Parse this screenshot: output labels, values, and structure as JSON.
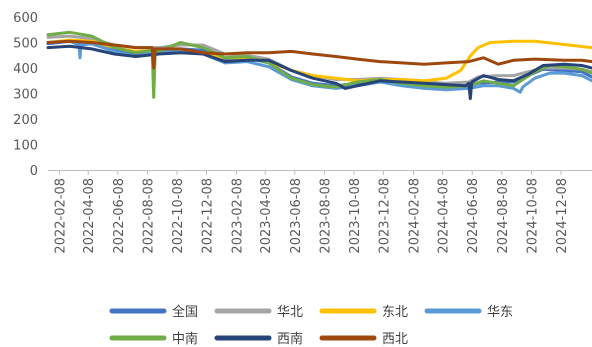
{
  "chart_data": {
    "type": "line",
    "title": "",
    "xlabel": "",
    "ylabel": "",
    "ylim": [
      0,
      600
    ],
    "y_ticks": [
      "0",
      "100",
      "200",
      "300",
      "400",
      "500",
      "600"
    ],
    "x_range": [
      "2022-01-15",
      "2025-02-10"
    ],
    "x_ticks": [
      "2022-02-08",
      "2022-04-08",
      "2022-06-08",
      "2022-08-08",
      "2022-10-08",
      "2022-12-08",
      "2023-02-08",
      "2023-04-08",
      "2023-06-08",
      "2023-08-08",
      "2023-10-08",
      "2023-12-08",
      "2024-02-08",
      "2024-04-08",
      "2024-06-08",
      "2024-08-08",
      "2024-10-08",
      "2024-12-08"
    ],
    "grid": false,
    "legend_position": "bottom",
    "series": [
      {
        "name": "全国",
        "color": "#4472C4",
        "width": 3,
        "points": [
          [
            "2022-01-15",
            495
          ],
          [
            "2022-03-01",
            505
          ],
          [
            "2022-04-15",
            495
          ],
          [
            "2022-06-01",
            470
          ],
          [
            "2022-07-15",
            455
          ],
          [
            "2022-09-01",
            465
          ],
          [
            "2022-10-15",
            475
          ],
          [
            "2022-12-01",
            470
          ],
          [
            "2023-01-15",
            435
          ],
          [
            "2023-03-01",
            440
          ],
          [
            "2023-04-15",
            420
          ],
          [
            "2023-06-01",
            365
          ],
          [
            "2023-07-15",
            340
          ],
          [
            "2023-09-01",
            330
          ],
          [
            "2023-10-15",
            340
          ],
          [
            "2023-12-01",
            350
          ],
          [
            "2024-01-15",
            340
          ],
          [
            "2024-03-01",
            335
          ],
          [
            "2024-04-15",
            330
          ],
          [
            "2024-06-01",
            330
          ],
          [
            "2024-06-20",
            340
          ],
          [
            "2024-08-01",
            345
          ],
          [
            "2024-09-01",
            345
          ],
          [
            "2024-10-01",
            370
          ],
          [
            "2024-11-01",
            395
          ],
          [
            "2024-12-15",
            390
          ],
          [
            "2025-01-20",
            385
          ],
          [
            "2025-02-10",
            365
          ]
        ]
      },
      {
        "name": "华北",
        "color": "#A5A5A5",
        "width": 3,
        "points": [
          [
            "2022-01-15",
            520
          ],
          [
            "2022-03-01",
            525
          ],
          [
            "2022-04-15",
            515
          ],
          [
            "2022-06-01",
            490
          ],
          [
            "2022-07-15",
            480
          ],
          [
            "2022-09-01",
            480
          ],
          [
            "2022-10-15",
            490
          ],
          [
            "2022-12-01",
            490
          ],
          [
            "2023-01-15",
            455
          ],
          [
            "2023-03-01",
            450
          ],
          [
            "2023-04-15",
            435
          ],
          [
            "2023-06-01",
            390
          ],
          [
            "2023-07-15",
            370
          ],
          [
            "2023-09-01",
            355
          ],
          [
            "2023-10-15",
            355
          ],
          [
            "2023-12-01",
            360
          ],
          [
            "2024-01-15",
            355
          ],
          [
            "2024-03-01",
            345
          ],
          [
            "2024-04-15",
            340
          ],
          [
            "2024-06-01",
            345
          ],
          [
            "2024-06-20",
            365
          ],
          [
            "2024-08-01",
            370
          ],
          [
            "2024-09-01",
            370
          ],
          [
            "2024-10-01",
            385
          ],
          [
            "2024-11-01",
            400
          ],
          [
            "2024-12-15",
            400
          ],
          [
            "2025-01-20",
            395
          ],
          [
            "2025-02-10",
            385
          ]
        ]
      },
      {
        "name": "东北",
        "color": "#FFC000",
        "width": 3,
        "points": [
          [
            "2022-01-15",
            500
          ],
          [
            "2022-03-01",
            510
          ],
          [
            "2022-04-15",
            505
          ],
          [
            "2022-06-01",
            480
          ],
          [
            "2022-07-15",
            465
          ],
          [
            "2022-09-01",
            470
          ],
          [
            "2022-10-15",
            470
          ],
          [
            "2022-12-01",
            455
          ],
          [
            "2023-01-15",
            440
          ],
          [
            "2023-03-01",
            440
          ],
          [
            "2023-04-15",
            425
          ],
          [
            "2023-06-01",
            390
          ],
          [
            "2023-07-15",
            370
          ],
          [
            "2023-09-01",
            360
          ],
          [
            "2023-10-15",
            350
          ],
          [
            "2023-12-01",
            355
          ],
          [
            "2024-01-15",
            355
          ],
          [
            "2024-03-01",
            350
          ],
          [
            "2024-04-15",
            360
          ],
          [
            "2024-05-15",
            390
          ],
          [
            "2024-06-05",
            450
          ],
          [
            "2024-06-20",
            480
          ],
          [
            "2024-07-15",
            500
          ],
          [
            "2024-09-01",
            505
          ],
          [
            "2024-10-15",
            505
          ],
          [
            "2024-12-01",
            495
          ],
          [
            "2025-01-15",
            485
          ],
          [
            "2025-02-10",
            480
          ]
        ]
      },
      {
        "name": "华东",
        "color": "#5B9BD5",
        "width": 3,
        "points": [
          [
            "2022-01-15",
            500
          ],
          [
            "2022-03-01",
            505
          ],
          [
            "2022-03-20",
            490
          ],
          [
            "2022-03-22",
            440
          ],
          [
            "2022-03-24",
            490
          ],
          [
            "2022-04-15",
            495
          ],
          [
            "2022-06-01",
            465
          ],
          [
            "2022-07-15",
            445
          ],
          [
            "2022-09-01",
            465
          ],
          [
            "2022-10-15",
            470
          ],
          [
            "2022-12-01",
            455
          ],
          [
            "2023-01-15",
            420
          ],
          [
            "2023-03-01",
            425
          ],
          [
            "2023-04-15",
            405
          ],
          [
            "2023-06-01",
            355
          ],
          [
            "2023-07-15",
            330
          ],
          [
            "2023-09-01",
            320
          ],
          [
            "2023-10-15",
            330
          ],
          [
            "2023-12-01",
            345
          ],
          [
            "2024-01-15",
            330
          ],
          [
            "2024-03-01",
            320
          ],
          [
            "2024-04-15",
            315
          ],
          [
            "2024-06-01",
            320
          ],
          [
            "2024-07-01",
            330
          ],
          [
            "2024-08-01",
            330
          ],
          [
            "2024-09-01",
            320
          ],
          [
            "2024-09-15",
            305
          ],
          [
            "2024-09-20",
            325
          ],
          [
            "2024-10-15",
            360
          ],
          [
            "2024-11-15",
            380
          ],
          [
            "2024-12-15",
            380
          ],
          [
            "2025-01-20",
            370
          ],
          [
            "2025-02-10",
            350
          ]
        ]
      },
      {
        "name": "中南",
        "color": "#70AD47",
        "width": 3,
        "points": [
          [
            "2022-01-15",
            530
          ],
          [
            "2022-03-01",
            540
          ],
          [
            "2022-04-15",
            525
          ],
          [
            "2022-06-01",
            480
          ],
          [
            "2022-07-15",
            460
          ],
          [
            "2022-08-18",
            470
          ],
          [
            "2022-08-21",
            285
          ],
          [
            "2022-08-24",
            460
          ],
          [
            "2022-10-15",
            500
          ],
          [
            "2022-12-01",
            480
          ],
          [
            "2023-01-15",
            440
          ],
          [
            "2023-03-01",
            445
          ],
          [
            "2023-04-15",
            420
          ],
          [
            "2023-06-01",
            360
          ],
          [
            "2023-07-15",
            335
          ],
          [
            "2023-09-01",
            325
          ],
          [
            "2023-10-15",
            345
          ],
          [
            "2023-12-01",
            355
          ],
          [
            "2024-01-15",
            340
          ],
          [
            "2024-03-01",
            330
          ],
          [
            "2024-04-15",
            325
          ],
          [
            "2024-06-01",
            330
          ],
          [
            "2024-07-01",
            350
          ],
          [
            "2024-08-01",
            340
          ],
          [
            "2024-09-01",
            330
          ],
          [
            "2024-10-15",
            385
          ],
          [
            "2024-11-15",
            410
          ],
          [
            "2024-12-15",
            405
          ],
          [
            "2025-01-20",
            395
          ],
          [
            "2025-02-10",
            380
          ]
        ]
      },
      {
        "name": "西南",
        "color": "#264478",
        "width": 3,
        "points": [
          [
            "2022-01-15",
            480
          ],
          [
            "2022-03-01",
            485
          ],
          [
            "2022-04-15",
            475
          ],
          [
            "2022-06-01",
            455
          ],
          [
            "2022-07-15",
            445
          ],
          [
            "2022-09-01",
            455
          ],
          [
            "2022-10-15",
            460
          ],
          [
            "2022-12-01",
            455
          ],
          [
            "2023-01-15",
            425
          ],
          [
            "2023-03-01",
            430
          ],
          [
            "2023-04-15",
            430
          ],
          [
            "2023-06-01",
            390
          ],
          [
            "2023-07-15",
            360
          ],
          [
            "2023-09-01",
            340
          ],
          [
            "2023-09-20",
            320
          ],
          [
            "2023-10-15",
            330
          ],
          [
            "2023-12-01",
            350
          ],
          [
            "2024-01-15",
            345
          ],
          [
            "2024-03-01",
            340
          ],
          [
            "2024-04-15",
            335
          ],
          [
            "2024-05-25",
            330
          ],
          [
            "2024-06-01",
            340
          ],
          [
            "2024-06-04",
            280
          ],
          [
            "2024-06-07",
            345
          ],
          [
            "2024-07-01",
            370
          ],
          [
            "2024-08-01",
            355
          ],
          [
            "2024-09-01",
            350
          ],
          [
            "2024-10-01",
            375
          ],
          [
            "2024-11-01",
            410
          ],
          [
            "2024-12-15",
            415
          ],
          [
            "2025-01-20",
            410
          ],
          [
            "2025-02-10",
            400
          ]
        ]
      },
      {
        "name": "西北",
        "color": "#9E480E",
        "width": 3,
        "points": [
          [
            "2022-01-15",
            500
          ],
          [
            "2022-03-01",
            505
          ],
          [
            "2022-04-15",
            500
          ],
          [
            "2022-06-01",
            490
          ],
          [
            "2022-07-15",
            480
          ],
          [
            "2022-08-18",
            480
          ],
          [
            "2022-08-21",
            400
          ],
          [
            "2022-08-24",
            475
          ],
          [
            "2022-10-15",
            475
          ],
          [
            "2022-12-01",
            460
          ],
          [
            "2023-01-15",
            455
          ],
          [
            "2023-03-01",
            460
          ],
          [
            "2023-04-15",
            460
          ],
          [
            "2023-06-01",
            465
          ],
          [
            "2023-07-15",
            455
          ],
          [
            "2023-09-01",
            445
          ],
          [
            "2023-10-15",
            435
          ],
          [
            "2023-12-01",
            425
          ],
          [
            "2024-01-15",
            420
          ],
          [
            "2024-03-01",
            415
          ],
          [
            "2024-04-15",
            420
          ],
          [
            "2024-06-01",
            425
          ],
          [
            "2024-07-01",
            440
          ],
          [
            "2024-08-01",
            415
          ],
          [
            "2024-09-01",
            430
          ],
          [
            "2024-10-15",
            435
          ],
          [
            "2024-12-15",
            430
          ],
          [
            "2025-01-20",
            430
          ],
          [
            "2025-02-10",
            425
          ]
        ]
      }
    ]
  }
}
